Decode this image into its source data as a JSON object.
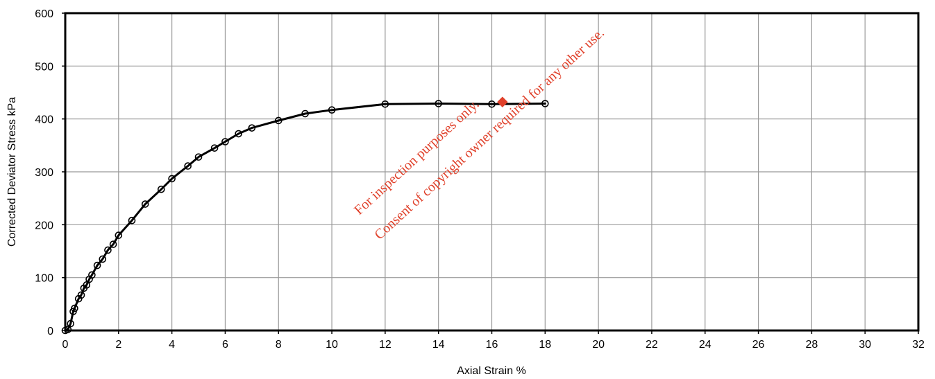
{
  "chart_data": {
    "type": "scatter",
    "title": "",
    "xlabel": "Axial Strain  %",
    "ylabel": "Corrected Deviator Stress  kPa",
    "xlim": [
      0,
      32
    ],
    "ylim": [
      0,
      600
    ],
    "x_ticks": [
      0,
      2,
      4,
      6,
      8,
      10,
      12,
      14,
      16,
      18,
      20,
      22,
      24,
      26,
      28,
      30,
      32
    ],
    "y_ticks": [
      0,
      100,
      200,
      300,
      400,
      500,
      600
    ],
    "grid": true,
    "legend": "none",
    "series": [
      {
        "line_color": "#000000",
        "marker": "open-circle",
        "points": [
          [
            0,
            0
          ],
          [
            0.1,
            2
          ],
          [
            0.2,
            13
          ],
          [
            0.3,
            36
          ],
          [
            0.35,
            42
          ],
          [
            0.5,
            60
          ],
          [
            0.6,
            67
          ],
          [
            0.7,
            80
          ],
          [
            0.8,
            86
          ],
          [
            0.9,
            97
          ],
          [
            1.0,
            105
          ],
          [
            1.2,
            123
          ],
          [
            1.4,
            135
          ],
          [
            1.6,
            152
          ],
          [
            1.8,
            163
          ],
          [
            2.0,
            180
          ],
          [
            2.5,
            208
          ],
          [
            3.0,
            239
          ],
          [
            3.6,
            267
          ],
          [
            4.0,
            287
          ],
          [
            4.6,
            311
          ],
          [
            5.0,
            328
          ],
          [
            5.6,
            345
          ],
          [
            6.0,
            357
          ],
          [
            6.5,
            372
          ],
          [
            7.0,
            383
          ],
          [
            8.0,
            397
          ],
          [
            9.0,
            410
          ],
          [
            10.0,
            417
          ],
          [
            12.0,
            428
          ],
          [
            14.0,
            429
          ],
          [
            16.0,
            428
          ],
          [
            18.0,
            429
          ]
        ]
      }
    ],
    "peak_marker": {
      "x": 16.4,
      "y": 432,
      "color": "#e0402a",
      "shape": "diamond"
    }
  },
  "watermark": {
    "line1": "For inspection purposes only.",
    "line2": "Consent of copyright owner required for any other use.",
    "color": "#e0402a"
  }
}
